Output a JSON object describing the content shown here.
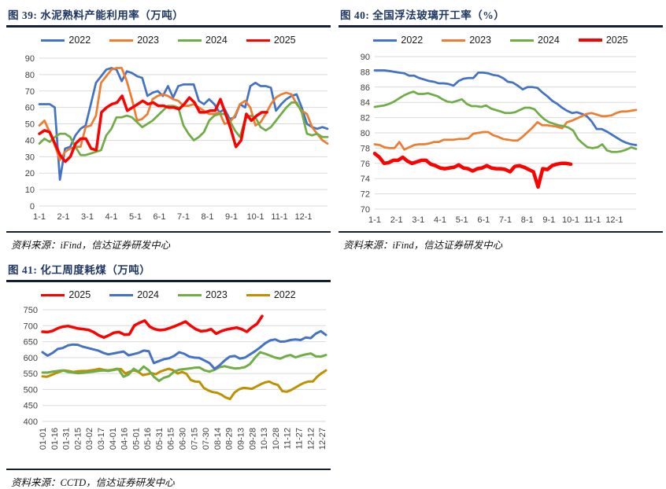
{
  "page": {
    "background": "#FFFFFF"
  },
  "colors": {
    "blue": "#4472C4",
    "orange": "#ED7D31",
    "green": "#70AD47",
    "red": "#FF0000",
    "gold": "#BF9000",
    "grid": "#D9D9D9",
    "title_navy": "#1F3864",
    "rule": "#151F33"
  },
  "chart_data": [
    {
      "type": "line",
      "title": "图 39: 水泥熟料产能利用率（万吨）",
      "source": "资料来源：iFind，信达证券研发中心",
      "yaxis": {
        "min": 0,
        "max": 90,
        "step": 10
      },
      "xlabels": [
        "1-1",
        "2-1",
        "3-1",
        "4-1",
        "5-1",
        "6-1",
        "7-1",
        "8-1",
        "9-1",
        "10-1",
        "11-1",
        "12-1"
      ],
      "legend_position": "top",
      "grid": true,
      "series": [
        {
          "name": "2022",
          "color": "#4472C4",
          "width": 2.75,
          "values": [
            62,
            62,
            62,
            60,
            16,
            35,
            36,
            43,
            47,
            49,
            62,
            75,
            79,
            83,
            84,
            83,
            76,
            82,
            81,
            79,
            78,
            67,
            69,
            70,
            67,
            73,
            66,
            73,
            74,
            74,
            74,
            64,
            62,
            65,
            62,
            57,
            59,
            53,
            54,
            62,
            60,
            73,
            75,
            73,
            73,
            72,
            58,
            62,
            65,
            67,
            68,
            60,
            50,
            48,
            47,
            48,
            47
          ]
        },
        {
          "name": "2023",
          "color": "#ED7D31",
          "width": 2.75,
          "values": [
            49,
            52,
            45,
            37,
            28,
            33,
            35,
            36,
            36,
            48,
            49,
            55,
            75,
            79,
            83,
            84,
            84,
            76,
            65,
            52,
            53,
            56,
            65,
            67,
            68,
            67,
            65,
            64,
            61,
            61,
            62,
            60,
            58,
            56,
            56,
            57,
            50,
            51,
            55,
            62,
            64,
            60,
            49,
            51,
            56,
            62,
            66,
            68,
            69,
            68,
            62,
            58,
            56,
            48,
            44,
            40,
            38
          ]
        },
        {
          "name": "2024",
          "color": "#70AD47",
          "width": 2.75,
          "values": [
            38,
            41,
            39,
            42,
            44,
            44,
            42,
            36,
            31,
            31,
            32,
            33,
            34,
            43,
            47,
            54,
            54,
            55,
            54,
            51,
            48,
            50,
            52,
            55,
            58,
            61,
            61,
            60,
            49,
            44,
            40,
            42,
            45,
            52,
            55,
            56,
            56,
            52,
            46,
            42,
            53,
            55,
            54,
            48,
            46,
            48,
            52,
            56,
            60,
            63,
            63,
            57,
            44,
            43,
            44,
            42,
            42
          ]
        },
        {
          "name": "2025",
          "color": "#FF0000",
          "width": 3.5,
          "end": 0.79,
          "values": [
            44,
            46,
            45,
            38,
            31,
            27,
            30,
            38,
            41,
            41,
            35,
            34,
            57,
            60,
            62,
            63,
            67,
            58,
            60,
            62,
            64,
            62,
            63,
            61,
            61,
            60,
            60,
            59,
            62,
            66,
            63,
            57,
            57,
            58,
            58,
            65,
            56,
            47,
            36,
            40,
            56,
            52,
            55,
            57,
            57
          ]
        }
      ]
    },
    {
      "type": "line",
      "title": "图 40: 全国浮法玻璃开工率（%）",
      "source": "资料来源：iFind，信达证券研发中心",
      "yaxis": {
        "min": 70,
        "max": 90,
        "step": 2
      },
      "xlabels": [
        "1-1",
        "2-1",
        "3-1",
        "4-1",
        "5-1",
        "6-1",
        "7-1",
        "8-1",
        "9-1",
        "10-1",
        "11-1",
        "12-1"
      ],
      "legend_position": "top",
      "grid": true,
      "series": [
        {
          "name": "2022",
          "color": "#4472C4",
          "width": 2.75,
          "values": [
            88.2,
            88.2,
            88.2,
            88.1,
            88,
            87.9,
            87.8,
            87.5,
            87.5,
            87.2,
            87,
            86.8,
            86.7,
            86.5,
            86.5,
            86.4,
            86.2,
            86.8,
            87.1,
            87.2,
            87.2,
            87.9,
            87.9,
            87.8,
            87.6,
            87.5,
            87.2,
            86.7,
            86.6,
            86.2,
            85.7,
            86,
            86,
            85.9,
            85.3,
            84.8,
            84.2,
            83.8,
            83.3,
            82.9,
            82.6,
            82.7,
            82.5,
            82.2,
            81.5,
            80.5,
            80.5,
            80.2,
            79.8,
            79.4,
            79,
            78.7,
            78.5,
            78.4
          ]
        },
        {
          "name": "2023",
          "color": "#ED7D31",
          "width": 2.75,
          "values": [
            78.5,
            78.4,
            78.1,
            78,
            78,
            78.8,
            77.8,
            78.1,
            78.4,
            78.5,
            78.5,
            78.6,
            78.8,
            78.8,
            79.1,
            79.1,
            79.1,
            79.2,
            79.2,
            79.3,
            79.9,
            80,
            80.1,
            80.1,
            79.7,
            79.5,
            79.2,
            79.1,
            79,
            79,
            79.5,
            80.1,
            80.7,
            81.4,
            81,
            81,
            80.9,
            80.8,
            80.6,
            81.4,
            81.6,
            81.9,
            82.2,
            82.5,
            82.6,
            82.4,
            82.2,
            82.2,
            82.3,
            82.6,
            82.8,
            82.8,
            82.9,
            83
          ]
        },
        {
          "name": "2024",
          "color": "#70AD47",
          "width": 2.75,
          "values": [
            83.4,
            83.5,
            83.6,
            83.8,
            84.1,
            84.5,
            84.9,
            85.2,
            85.4,
            85.1,
            85.1,
            85.2,
            85,
            84.8,
            84.4,
            84.1,
            84,
            84.2,
            84.4,
            83.8,
            83.5,
            83.5,
            83.4,
            83.6,
            83.2,
            83,
            82.8,
            82.6,
            82.6,
            82.7,
            83,
            83.3,
            83.3,
            83.1,
            82.4,
            81.8,
            81.4,
            81.2,
            81,
            80.9,
            80.7,
            80.3,
            79.2,
            78.6,
            78.1,
            78,
            78.1,
            78.5,
            77.7,
            77.5,
            77.5,
            77.6,
            77.8,
            78.1,
            77.9
          ]
        },
        {
          "name": "2025",
          "color": "#FF0000",
          "width": 4.5,
          "end": 0.75,
          "values": [
            77.3,
            76.8,
            76,
            76.1,
            76.4,
            76.4,
            76.8,
            76.3,
            76,
            76.2,
            76.4,
            76.4,
            75.9,
            75.7,
            75.4,
            75.3,
            75.4,
            75.5,
            75.8,
            75.4,
            75.3,
            75,
            75.3,
            75.4,
            75.7,
            75.4,
            75.3,
            75.3,
            75.2,
            74.9,
            75.6,
            75.7,
            75.5,
            75.2,
            74.9,
            72.9,
            75.3,
            75.2,
            75.7,
            75.9,
            76,
            76,
            75.9
          ]
        }
      ]
    },
    {
      "type": "line",
      "title": "图 41: 化工周度耗煤（万吨）",
      "source": "资料来源：CCTD，信达证券研发中心",
      "yaxis": {
        "min": 400,
        "max": 750,
        "step": 50
      },
      "xlabels": [
        "01-01",
        "01-16",
        "01-31",
        "02-15",
        "03-02",
        "03-17",
        "04-01",
        "04-16",
        "05-01",
        "05-16",
        "05-31",
        "06-15",
        "06-30",
        "07-15",
        "07-30",
        "08-14",
        "08-29",
        "09-13",
        "09-28",
        "10-13",
        "10-28",
        "11-12",
        "11-27",
        "12-12",
        "12-27"
      ],
      "legend_position": "top",
      "grid": true,
      "draw_reverse": true,
      "series": [
        {
          "name": "2025",
          "color": "#FF0000",
          "width": 3.5,
          "end": 0.775,
          "values": [
            681,
            680,
            684,
            692,
            697,
            699,
            695,
            691,
            689,
            687,
            680,
            670,
            663,
            670,
            678,
            680,
            672,
            673,
            701,
            709,
            716,
            697,
            689,
            686,
            688,
            693,
            699,
            706,
            713,
            700,
            689,
            683,
            684,
            689,
            675,
            683,
            688,
            691,
            694,
            689,
            681,
            695,
            706,
            730
          ]
        },
        {
          "name": "2024",
          "color": "#4472C4",
          "width": 3,
          "values": [
            617,
            606,
            615,
            627,
            630,
            638,
            641,
            640,
            634,
            630,
            626,
            622,
            615,
            610,
            613,
            616,
            619,
            607,
            611,
            615,
            622,
            620,
            583,
            589,
            595,
            598,
            605,
            617,
            612,
            603,
            600,
            599,
            591,
            583,
            565,
            576,
            591,
            603,
            605,
            597,
            600,
            610,
            620,
            632,
            645,
            654,
            657,
            650,
            651,
            655,
            657,
            655,
            663,
            661,
            675,
            683,
            671
          ]
        },
        {
          "name": "2023",
          "color": "#70AD47",
          "width": 3,
          "values": [
            553,
            553,
            556,
            558,
            560,
            555,
            553,
            551,
            552,
            554,
            556,
            558,
            560,
            558,
            561,
            564,
            540,
            547,
            565,
            556,
            572,
            560,
            540,
            527,
            537,
            542,
            556,
            562,
            564,
            566,
            568,
            569,
            560,
            556,
            562,
            570,
            573,
            569,
            566,
            567,
            570,
            580,
            600,
            617,
            612,
            606,
            600,
            597,
            604,
            608,
            601,
            606,
            610,
            613,
            604,
            603,
            608
          ]
        },
        {
          "name": "2022",
          "color": "#BF9000",
          "width": 3,
          "values": [
            541,
            540,
            545,
            551,
            556,
            560,
            558,
            555,
            557,
            558,
            558,
            560,
            562,
            565,
            562,
            560,
            562,
            565,
            564,
            550,
            556,
            560,
            555,
            545,
            548,
            551,
            548,
            556,
            561,
            565,
            560,
            550,
            555,
            549,
            530,
            525,
            524,
            505,
            497,
            492,
            490,
            484,
            475,
            470,
            490,
            500,
            505,
            504,
            502,
            509,
            516,
            522,
            525,
            518,
            514,
            495,
            493,
            498,
            506,
            514,
            521,
            525,
            525,
            540,
            551,
            560
          ]
        }
      ]
    }
  ]
}
